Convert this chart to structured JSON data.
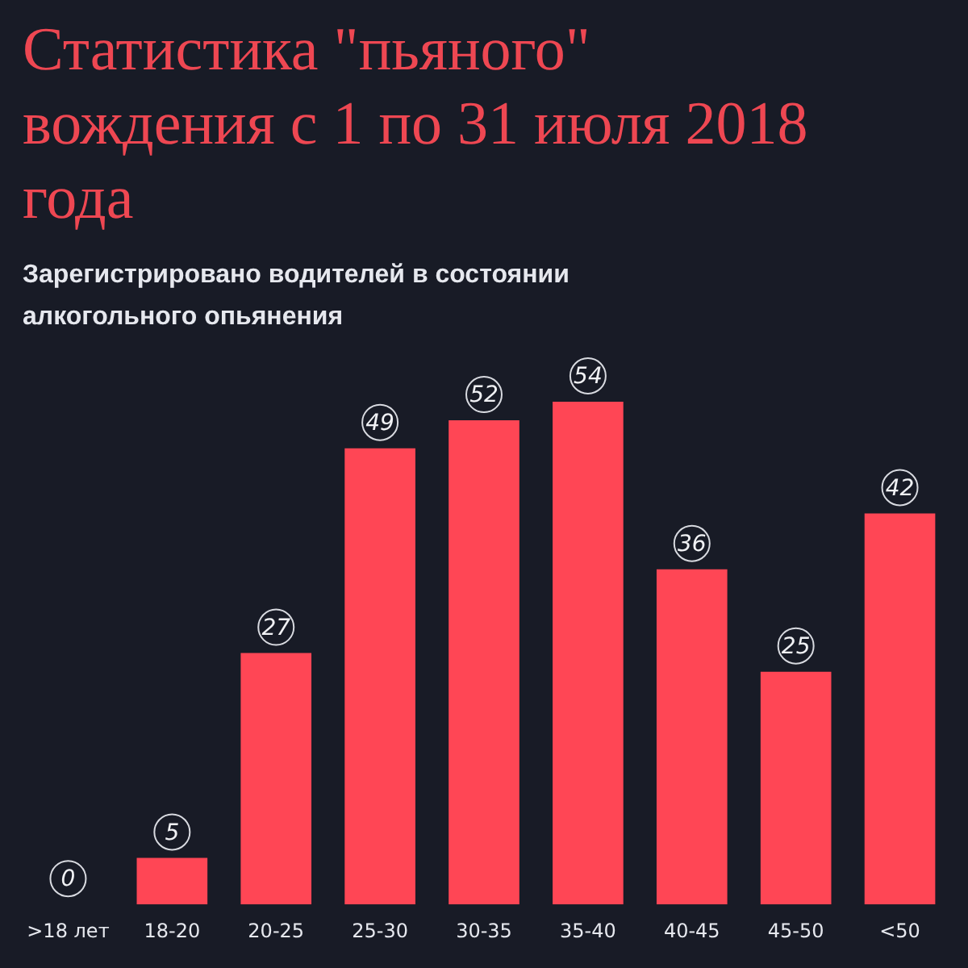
{
  "chart_data": {
    "type": "bar",
    "title": "Статистика \"пьяного\" вождения с 1 по 31 июля 2018 года",
    "subtitle": "Зарегистрировано водителей в состоянии алкогольного опьянения",
    "categories": [
      ">18 лет",
      "18-20",
      "20-25",
      "25-30",
      "30-35",
      "35-40",
      "40-45",
      "45-50",
      "<50"
    ],
    "values": [
      0,
      5,
      27,
      49,
      52,
      54,
      36,
      25,
      42
    ],
    "color": "#ff4655",
    "data_labels": true,
    "legend": false
  }
}
